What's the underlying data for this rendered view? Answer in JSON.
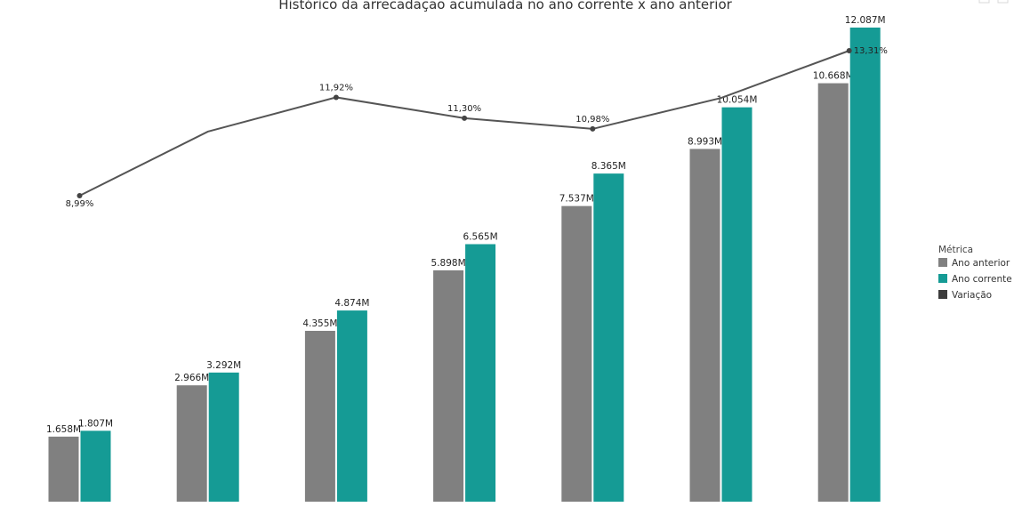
{
  "chart_data": {
    "type": "bar",
    "title": "Histórico da arrecadação acumulada no ano corrente x ano anterior",
    "categories": [
      "",
      "",
      "",
      "",
      "",
      "",
      ""
    ],
    "series": [
      {
        "name": "Ano anterior",
        "values": [
          1658,
          2966,
          4355,
          5898,
          7537,
          8993,
          10668
        ],
        "labels": [
          "1.658M",
          "2.966M",
          "4.355M",
          "5.898M",
          "7.537M",
          "8.993M",
          "10.668M"
        ],
        "color": "#808080"
      },
      {
        "name": "Ano corrente",
        "values": [
          1807,
          3292,
          4874,
          6565,
          8365,
          10054,
          12087
        ],
        "labels": [
          "1.807M",
          "3.292M",
          "4.874M",
          "6.565M",
          "8.365M",
          "10.054M",
          "12.087M"
        ],
        "color": "#159b95"
      }
    ],
    "line": {
      "name": "Variação",
      "values": [
        8.99,
        10.9,
        11.92,
        11.3,
        10.98,
        11.9,
        13.31
      ],
      "labels": [
        "8,99%",
        "",
        "11,92%",
        "11,30%",
        "10,98%",
        "",
        "13,31%"
      ],
      "color": "#555555",
      "legend_color": "#3c3c3c"
    },
    "ylim": [
      0,
      12087
    ],
    "line_ylim": [
      5,
      13.31
    ],
    "grid": false,
    "legend": {
      "title": "Métrica",
      "placement": "right"
    }
  }
}
